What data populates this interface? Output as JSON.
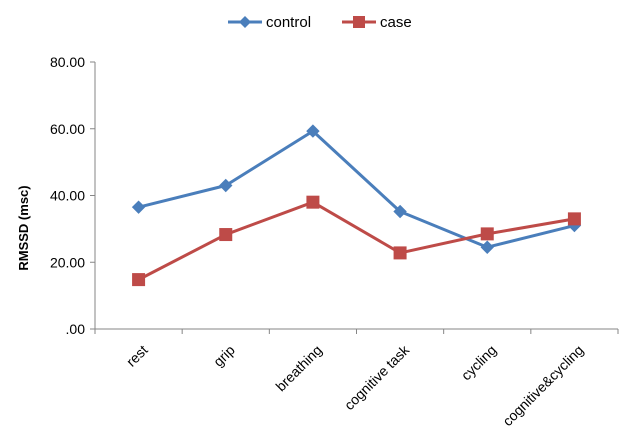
{
  "chart_data": {
    "type": "line",
    "title": "",
    "xlabel": "",
    "ylabel": "RMSSD (msc)",
    "ylim": [
      0,
      80
    ],
    "yticks": [
      0,
      20,
      40,
      60,
      80
    ],
    "ytick_labels": [
      ".00",
      "20.00",
      "40.00",
      "60.00",
      "80.00"
    ],
    "grid": false,
    "legend_position": "top-center",
    "categories": [
      "rest",
      "grip",
      "breathing",
      "cognitive task",
      "cycling",
      "cognitive&cycling"
    ],
    "series": [
      {
        "name": "control",
        "color": "#4a7ebb",
        "marker": "diamond",
        "values": [
          36.5,
          43.0,
          59.3,
          35.2,
          24.5,
          31.0
        ]
      },
      {
        "name": "case",
        "color": "#be4b48",
        "marker": "square",
        "values": [
          14.8,
          28.3,
          38.0,
          22.8,
          28.5,
          33.0
        ]
      }
    ]
  }
}
